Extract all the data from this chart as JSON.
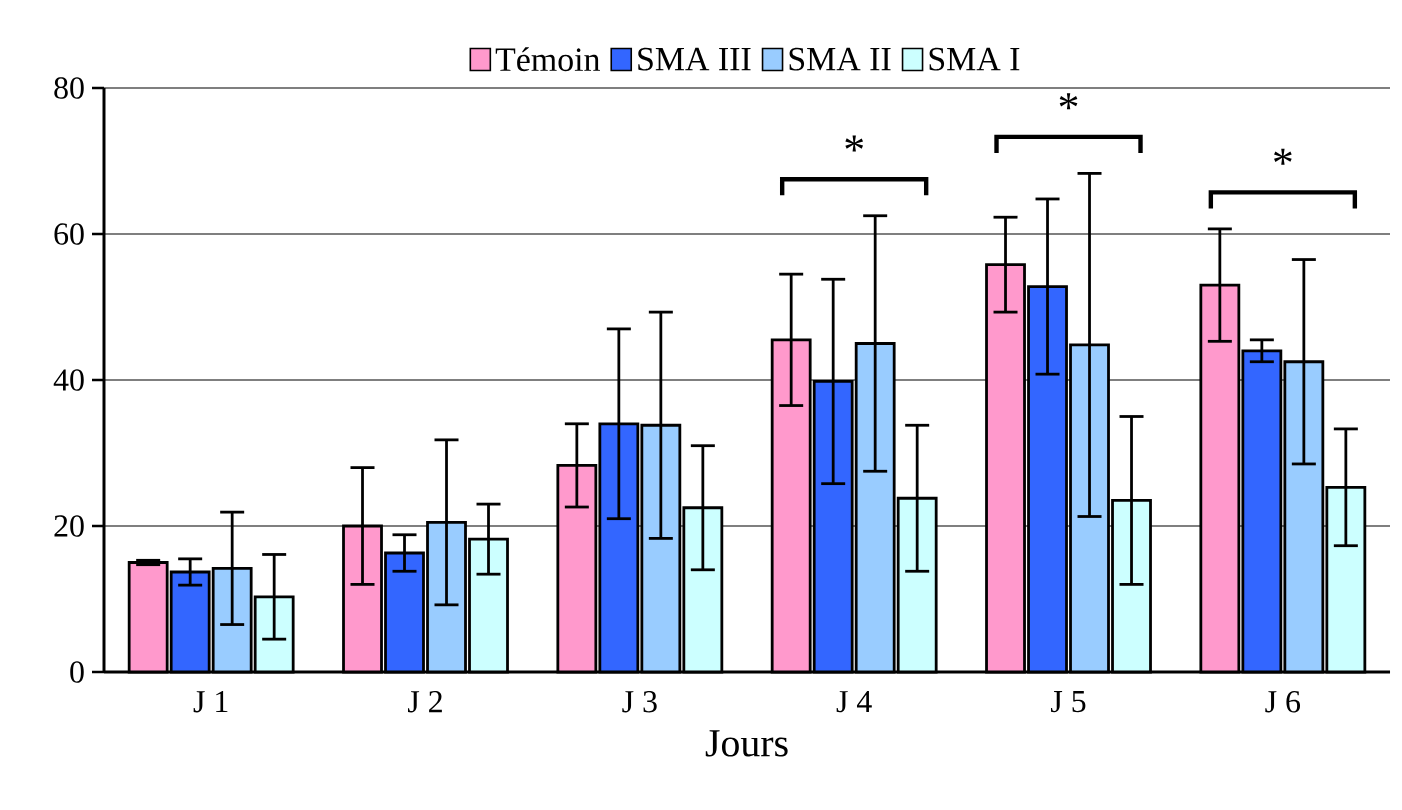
{
  "chart_data": {
    "type": "bar",
    "xlabel": "Jours",
    "categories": [
      "J 1",
      "J 2",
      "J 3",
      "J 4",
      "J 5",
      "J 6"
    ],
    "series": [
      {
        "name": "Témoin",
        "color": "#ff99cc",
        "values": [
          15,
          20,
          28.3,
          45.5,
          55.8,
          53
        ],
        "errors": [
          0.3,
          8,
          5.7,
          9,
          6.5,
          7.7
        ]
      },
      {
        "name": "SMA III",
        "color": "#3366ff",
        "values": [
          13.7,
          16.3,
          34,
          39.8,
          52.8,
          44
        ],
        "errors": [
          1.8,
          2.5,
          13,
          14,
          12,
          1.5
        ]
      },
      {
        "name": "SMA II",
        "color": "#99ccff",
        "values": [
          14.2,
          20.5,
          33.8,
          45,
          44.8,
          42.5
        ],
        "errors": [
          7.7,
          11.3,
          15.5,
          17.5,
          23.5,
          14
        ]
      },
      {
        "name": "SMA I",
        "color": "#ccffff",
        "values": [
          10.3,
          18.2,
          22.5,
          23.8,
          23.5,
          25.3
        ],
        "errors": [
          5.8,
          4.8,
          8.5,
          10,
          11.5,
          8
        ]
      }
    ],
    "ylim": [
      0,
      80
    ],
    "yticks": [
      0,
      20,
      40,
      60,
      80
    ],
    "grid": "y",
    "legend": "top",
    "annotations": [
      "*",
      "*",
      "*"
    ]
  }
}
